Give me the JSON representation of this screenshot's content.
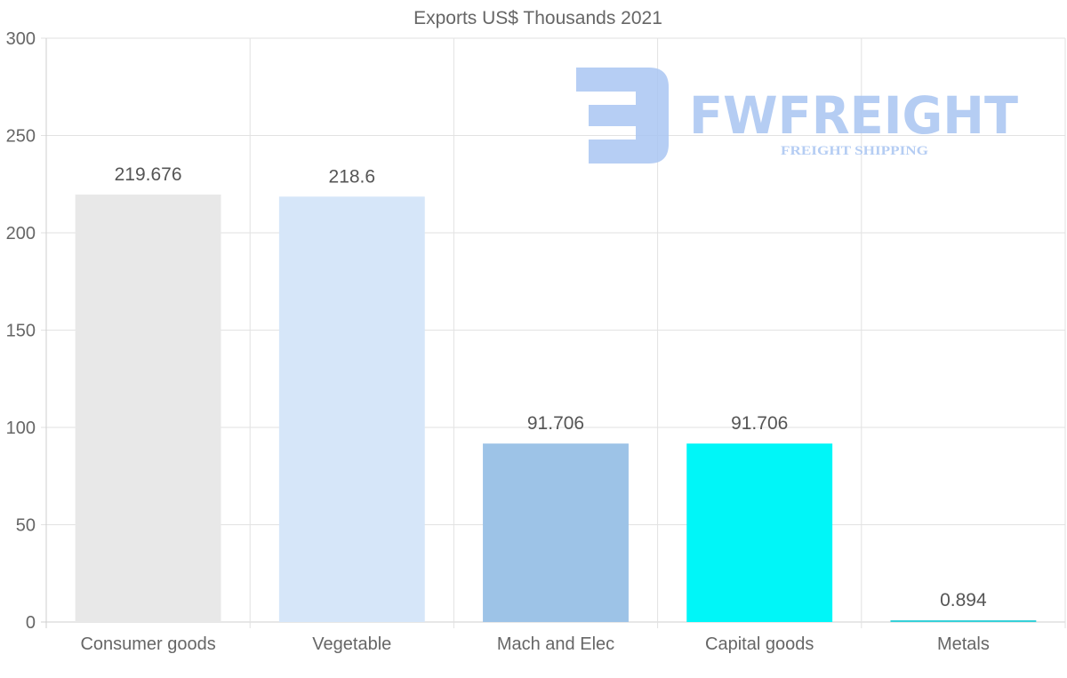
{
  "chart_data": {
    "type": "bar",
    "title": "Exports US$ Thousands 2021",
    "categories": [
      "Consumer goods",
      "Vegetable",
      "Mach and Elec",
      "Capital goods",
      "Metals"
    ],
    "values": [
      219.676,
      218.6,
      91.706,
      91.706,
      0.894
    ],
    "data_labels": [
      "219.676",
      "218.6",
      "91.706",
      "91.706",
      "0.894"
    ],
    "colors": [
      "#e8e8e8",
      "#d6e6f9",
      "#9dc3e7",
      "#00f6f8",
      "#33d0d8"
    ],
    "ylim": [
      0,
      300
    ],
    "yticks": [
      0,
      50,
      100,
      150,
      200,
      250,
      300
    ],
    "xlabel": "",
    "ylabel": "",
    "grid": true
  },
  "watermark": {
    "brand": "FWFREIGHT",
    "tagline": "FREIGHT SHIPPING",
    "color": "#a9c5f2"
  }
}
